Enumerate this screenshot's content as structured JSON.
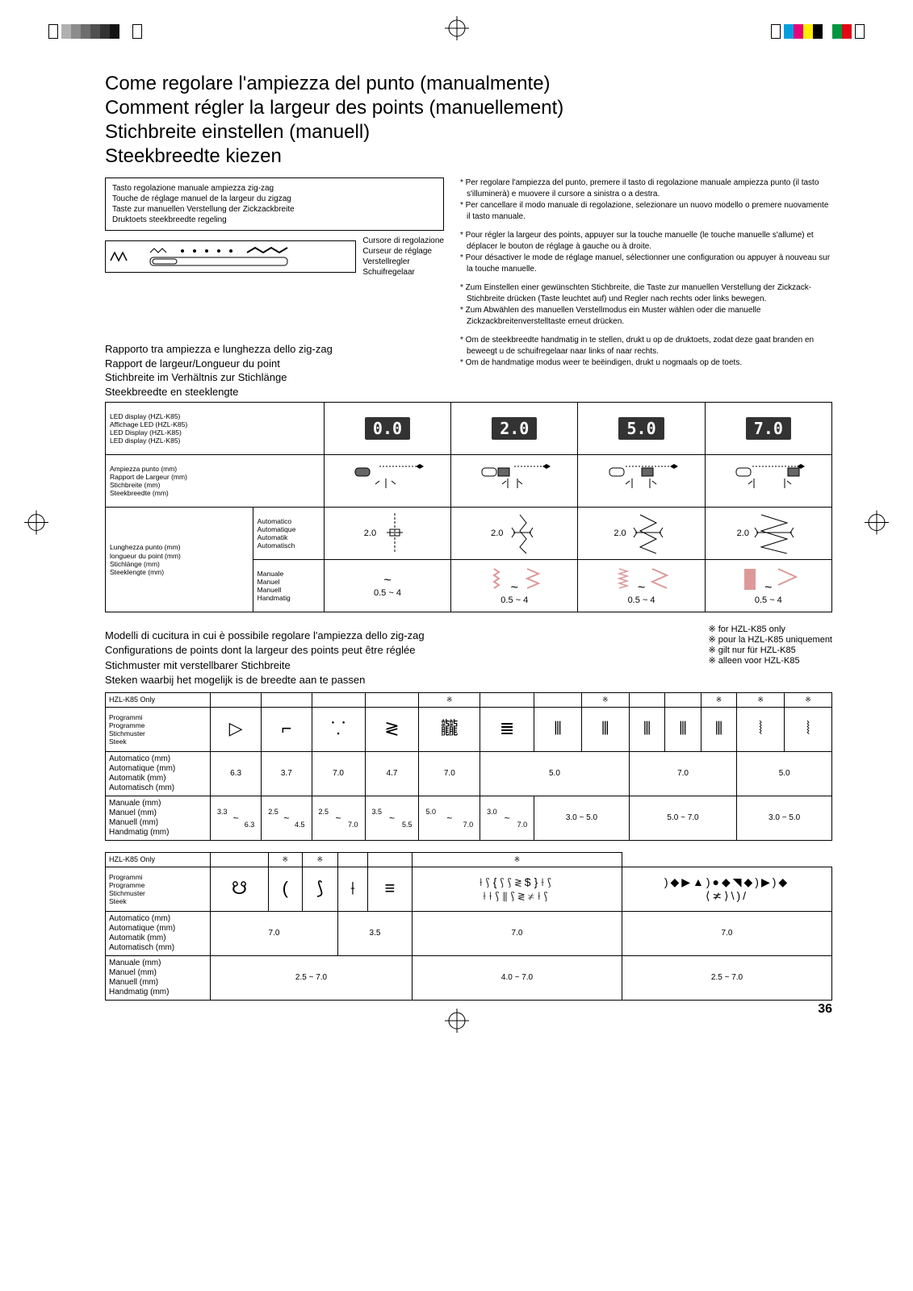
{
  "meta": {
    "page_number": "36"
  },
  "crop_colors_left": [
    "#b0b0b0",
    "#8c8c8c",
    "#6e6e6e",
    "#505050",
    "#323232",
    "#141414",
    "#ffffff"
  ],
  "crop_colors_right": [
    "#00a0e0",
    "#e5007e",
    "#ffed00",
    "#000000",
    "#ffffff",
    "#009640",
    "#e30613"
  ],
  "titles": {
    "it": "Come regolare l'ampiezza del punto (manualmente)",
    "fr": "Comment régler la largeur des points (manuellement)",
    "de": "Stichbreite einstellen (manuell)",
    "nl": "Steekbreedte kiezen"
  },
  "control_box": {
    "line1": "Tasto regolazione manuale ampiezza zig-zag",
    "line2": "Touche de réglage manuel de la largeur du zigzag",
    "line3": "Taste zur manuellen Verstellung der Zickzackbreite",
    "line4": "Druktoets steekbreedte regeling"
  },
  "cursor_labels": {
    "l1": "Cursore di regolazione",
    "l2": "Curseur de réglage",
    "l3": "Verstellregler",
    "l4": "Schuifregelaar"
  },
  "instr_it": [
    "* Per regolare l'ampiezza del punto, premere il tasto di regolazione manuale ampiezza punto (il tasto s'illuminerà) e muovere il cursore a sinistra o a destra.",
    "* Per cancellare il modo manuale di regolazione, selezionare un nuovo modello o premere nuovamente il tasto manuale."
  ],
  "instr_fr": [
    "* Pour régler la largeur des points, appuyer sur la touche manuelle (le touche manuelle s'allume) et déplacer le bouton de réglage à gauche ou à droite.",
    "* Pour désactiver le mode de réglage manuel, sélectionner une configuration ou appuyer à nouveau sur la touche manuelle."
  ],
  "instr_de": [
    "* Zum Einstellen einer gewünschten Stichbreite, die Taste zur manuellen Verstellung der Zickzack-Stichbreite drücken (Taste leuchtet auf) und Regler nach rechts oder links bewegen.",
    "* Zum Abwählen des manuellen Verstellmodus ein Muster wählen oder die manuelle Zickzackbreitenverstelltaste erneut drücken."
  ],
  "instr_nl": [
    "* Om de steekbreedte handmatig in te stellen, drukt u op de druktoets, zodat deze gaat branden en beweegt u de schuifregelaar naar links of naar rechts.",
    "* Om de handmatige modus weer te beëindigen, drukt u nogmaals op de toets."
  ],
  "ratio_titles": {
    "it": "Rapporto tra ampiezza e lunghezza dello zig-zag",
    "fr": "Rapport de largeur/Longueur du point",
    "de": "Stichbreite im Verhältnis zur Stichlänge",
    "nl": "Steekbreedte en steeklengte"
  },
  "ratio_table": {
    "row1_labels": [
      "LED display (HZL-K85)",
      "Affichage LED (HZL-K85)",
      "LED Display (HZL-K85)",
      "LED display (HZL-K85)"
    ],
    "row2_labels": [
      "Ampiezza punto (mm)",
      "Rapport de Largeur (mm)",
      "Stichbreite (mm)",
      "Steekbreedte (mm)"
    ],
    "row3_labels": [
      "Lunghezza punto (mm)",
      "longueur du point (mm)",
      "Stichlänge (mm)",
      "Steeklengte (mm)"
    ],
    "auto_labels": [
      "Automatico",
      "Automatique",
      "Automatik",
      "Automatisch"
    ],
    "manual_labels": [
      "Manuale",
      "Manuel",
      "Manuell",
      "Handmatig"
    ],
    "lcd_values": [
      "0.0",
      "2.0",
      "5.0",
      "7.0"
    ],
    "auto_value": "2.0",
    "manual_value": "0.5 ~ 4"
  },
  "models_titles": {
    "it": "Modelli di cucitura in cui è possibile regolare l'ampiezza dello zig-zag",
    "fr": "Configurations de points dont la largeur des points peut être réglée",
    "de": "Stichmuster mit verstellbarer Stichbreite",
    "nl": "Steken waarbij het mogelijk is de breedte aan te passen"
  },
  "models_notes": {
    "it": "※ for HZL-K85 only",
    "fr": "※ pour la HZL-K85 uniquement",
    "de": "※ gilt nur für HZL-K85",
    "nl": "※ alleen voor HZL-K85"
  },
  "table1": {
    "hdr": "HZL-K85 Only",
    "row_prog": [
      "Programmi",
      "Programme",
      "Stichmuster",
      "Steek"
    ],
    "row_auto": [
      "Automatico (mm)",
      "Automatique (mm)",
      "Automatik (mm)",
      "Automatisch (mm)"
    ],
    "row_manual": [
      "Manuale (mm)",
      "Manuel (mm)",
      "Manuell (mm)",
      "Handmatig (mm)"
    ],
    "stars": [
      "",
      "",
      "",
      "",
      "※",
      "",
      "",
      "※",
      "",
      "",
      "※",
      "※",
      "※"
    ],
    "icons": [
      "▷",
      "⌐",
      "⸪",
      "≷",
      "龖",
      "≣",
      "⫴",
      "⫴",
      "⫴",
      "⫴",
      "⫴",
      "⦚",
      "⦚"
    ],
    "auto": [
      "6.3",
      "3.7",
      "7.0",
      "4.7",
      "7.0",
      "5.0",
      "7.0",
      "5.0"
    ],
    "auto_span": [
      1,
      1,
      1,
      1,
      1,
      3,
      3,
      2
    ],
    "manual": [
      "3.3\n6.3",
      "2.5\n4.5",
      "2.5\n7.0",
      "3.5\n5.5",
      "5.0\n7.0",
      "3.0\n7.0",
      "3.0 ~ 5.0",
      "5.0 ~ 7.0",
      "3.0 ~ 5.0"
    ],
    "manual_span": [
      1,
      1,
      1,
      1,
      1,
      1,
      2,
      3,
      2
    ]
  },
  "table2": {
    "hdr": "HZL-K85 Only",
    "stars": [
      "",
      "※",
      "※",
      "",
      "",
      "※"
    ],
    "icons_group1": [
      "☋",
      "(",
      "⟆",
      "⟊",
      "≡"
    ],
    "icons_group2_top": "⟊⟆{⟆⟆≷$}⟊⟆",
    "icons_group2_bot": "⟊⟊⟆⫴⟆≷≭⟊⟆",
    "icons_group3_top": ")◆▶▲)●◆◥◆)▶)◆",
    "icons_group3_bot": "⟨≭⟩\\)/",
    "auto": [
      "7.0",
      "3.5",
      "7.0",
      "7.0"
    ],
    "auto_span": [
      3,
      1,
      1,
      1
    ],
    "manual": [
      "2.5 ~ 7.0",
      "4.0 ~ 7.0",
      "2.5 ~ 7.0"
    ],
    "manual_span": [
      4,
      1,
      1
    ]
  }
}
